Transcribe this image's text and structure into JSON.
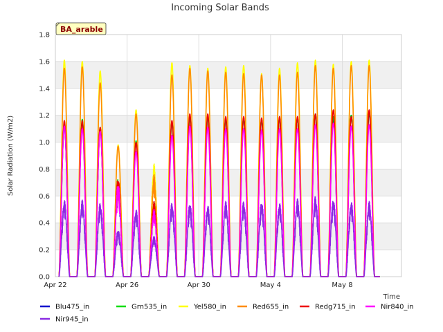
{
  "chart_data": {
    "type": "line",
    "title": "Incoming Solar Bands",
    "xlabel": "Time",
    "ylabel": "Solar Radiation (W/m2)",
    "station_label": "BA_arable",
    "ylim": [
      0,
      1.8
    ],
    "yticks": [
      "0.0",
      "0.2",
      "0.4",
      "0.6",
      "0.8",
      "1.0",
      "1.2",
      "1.4",
      "1.6",
      "1.8"
    ],
    "xlim_days": [
      0,
      19.3
    ],
    "xticks": [
      {
        "label": "Apr 22",
        "day": 0
      },
      {
        "label": "Apr 26",
        "day": 4
      },
      {
        "label": "Apr 30",
        "day": 8
      },
      {
        "label": "May 4",
        "day": 12
      },
      {
        "label": "May 8",
        "day": 16
      }
    ],
    "grid": true,
    "legend_position": "bottom",
    "day_centers": [
      0.5,
      1.5,
      2.5,
      3.5,
      4.5,
      5.5,
      6.5,
      7.5,
      8.5,
      9.5,
      10.5,
      11.5,
      12.5,
      13.5,
      14.5,
      15.5,
      16.5,
      17.5
    ],
    "series": [
      {
        "name": "Blu475_in",
        "color": "#0000cc",
        "peaks": [
          1.12,
          1.15,
          1.1,
          0.72,
          1.0,
          0.55,
          1.15,
          1.19,
          1.19,
          1.17,
          1.18,
          1.17,
          1.18,
          1.18,
          1.21,
          1.18,
          1.2,
          1.22
        ]
      },
      {
        "name": "Grn535_in",
        "color": "#00dd00",
        "peaks": [
          1.14,
          1.17,
          1.11,
          0.74,
          1.01,
          0.56,
          1.15,
          1.18,
          1.19,
          1.17,
          1.18,
          1.17,
          1.18,
          1.18,
          1.21,
          1.19,
          1.2,
          1.23
        ]
      },
      {
        "name": "Yel580_in",
        "color": "#ffff00",
        "peaks": [
          1.61,
          1.6,
          1.53,
          0.98,
          1.24,
          0.84,
          1.59,
          1.57,
          1.55,
          1.56,
          1.57,
          1.51,
          1.55,
          1.59,
          1.61,
          1.58,
          1.6,
          1.61
        ]
      },
      {
        "name": "Red655_in",
        "color": "#ff8c00",
        "peaks": [
          1.55,
          1.56,
          1.44,
          0.97,
          1.21,
          0.76,
          1.5,
          1.55,
          1.53,
          1.52,
          1.51,
          1.5,
          1.5,
          1.52,
          1.57,
          1.55,
          1.57,
          1.57
        ]
      },
      {
        "name": "Redg715_in",
        "color": "#ee0000",
        "peaks": [
          1.16,
          1.16,
          1.11,
          0.74,
          1.0,
          0.56,
          1.16,
          1.21,
          1.21,
          1.19,
          1.19,
          1.18,
          1.19,
          1.19,
          1.21,
          1.24,
          1.19,
          1.24
        ]
      },
      {
        "name": "Nir840_in",
        "color": "#ff00ff",
        "peaks": [
          1.12,
          1.1,
          1.08,
          0.7,
          0.93,
          0.5,
          1.05,
          1.12,
          1.11,
          1.1,
          1.1,
          1.09,
          1.1,
          1.1,
          1.13,
          1.14,
          1.12,
          1.13
        ]
      },
      {
        "name": "Nir945_in",
        "color": "#8a2be2",
        "peaks": [
          0.57,
          0.57,
          0.55,
          0.35,
          0.5,
          0.3,
          0.55,
          0.55,
          0.53,
          0.56,
          0.56,
          0.56,
          0.55,
          0.58,
          0.6,
          0.58,
          0.56,
          0.56
        ]
      }
    ]
  }
}
